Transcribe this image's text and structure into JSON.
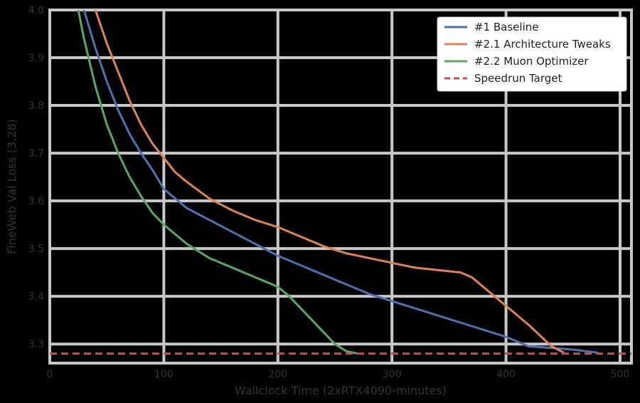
{
  "chart_data": {
    "type": "line",
    "title": "",
    "xlabel": "Wallclock Time (2xRTX4090-minutes)",
    "ylabel": "FineWeb Val Loss (3.28)",
    "xlim": [
      0,
      510
    ],
    "ylim": [
      3.26,
      4.0
    ],
    "xticks": [
      0,
      100,
      200,
      300,
      400,
      500
    ],
    "xtick_labels": [
      "0",
      "100",
      "200",
      "300",
      "400",
      "500"
    ],
    "yticks": [
      3.3,
      3.4,
      3.5,
      3.6,
      3.7,
      3.8,
      3.9,
      4.0
    ],
    "ytick_labels": [
      "3.3",
      "3.4",
      "3.5",
      "3.6",
      "3.7",
      "3.8",
      "3.9",
      "4.0"
    ],
    "grid": true,
    "legend_position": "top-right",
    "series": [
      {
        "name": "#1 Baseline",
        "color": "#4c72b0",
        "dash": "solid",
        "x": [
          30,
          40,
          50,
          60,
          70,
          80,
          90,
          100,
          120,
          140,
          160,
          180,
          200,
          220,
          240,
          260,
          280,
          300,
          320,
          340,
          360,
          380,
          400,
          420,
          440,
          460,
          480
        ],
        "y": [
          4.0,
          3.92,
          3.85,
          3.79,
          3.74,
          3.7,
          3.665,
          3.625,
          3.585,
          3.56,
          3.535,
          3.51,
          3.485,
          3.465,
          3.445,
          3.425,
          3.405,
          3.39,
          3.375,
          3.36,
          3.345,
          3.33,
          3.315,
          3.295,
          3.292,
          3.288,
          3.282
        ]
      },
      {
        "name": "#2.1 Architecture Tweaks",
        "color": "#dd8452",
        "dash": "solid",
        "x": [
          40,
          50,
          60,
          70,
          80,
          90,
          100,
          110,
          120,
          140,
          160,
          180,
          200,
          220,
          240,
          260,
          280,
          300,
          320,
          340,
          360,
          370,
          380,
          400,
          420,
          440,
          450
        ],
        "y": [
          4.0,
          3.93,
          3.87,
          3.81,
          3.76,
          3.72,
          3.69,
          3.66,
          3.64,
          3.605,
          3.58,
          3.56,
          3.545,
          3.525,
          3.505,
          3.49,
          3.48,
          3.47,
          3.46,
          3.455,
          3.45,
          3.44,
          3.42,
          3.38,
          3.34,
          3.295,
          3.283
        ]
      },
      {
        "name": "#2.2 Muon Optimizer",
        "color": "#55a868",
        "dash": "solid",
        "x": [
          25,
          30,
          40,
          50,
          60,
          70,
          80,
          90,
          100,
          120,
          140,
          160,
          180,
          200,
          210,
          220,
          230,
          240,
          250,
          260,
          270
        ],
        "y": [
          4.0,
          3.94,
          3.84,
          3.76,
          3.7,
          3.65,
          3.61,
          3.575,
          3.55,
          3.51,
          3.48,
          3.46,
          3.44,
          3.42,
          3.4,
          3.375,
          3.35,
          3.325,
          3.3,
          3.285,
          3.28
        ]
      },
      {
        "name": "Speedrun Target",
        "color": "#c44e52",
        "dash": "dashed",
        "x": [
          0,
          510
        ],
        "y": [
          3.28,
          3.28
        ]
      }
    ]
  }
}
